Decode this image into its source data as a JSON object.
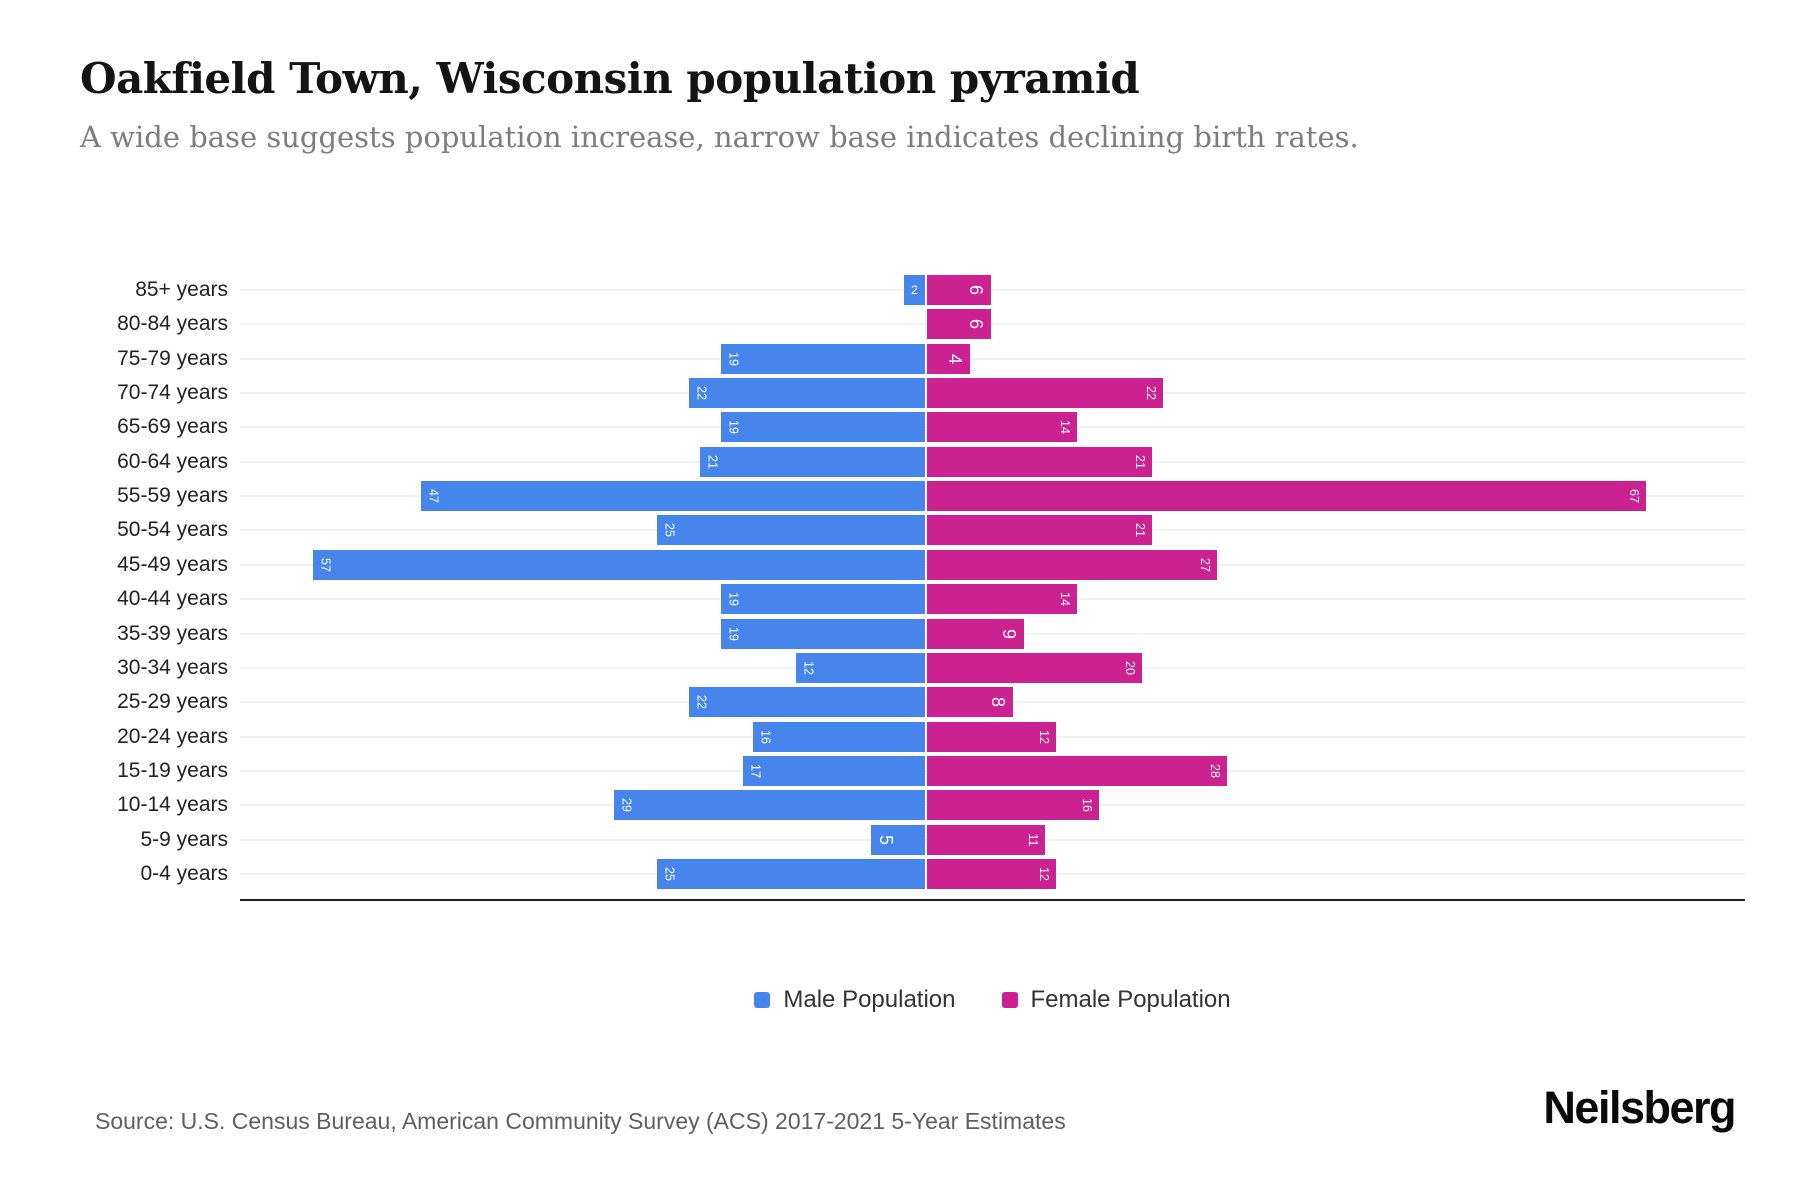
{
  "header": {
    "title": "Oakfield Town, Wisconsin population pyramid",
    "subtitle": "A wide base suggests population increase, narrow base indicates declining birth rates."
  },
  "chart_data": {
    "type": "bar",
    "variant": "population-pyramid",
    "orientation": "horizontal",
    "categories": [
      "85+ years",
      "80-84 years",
      "75-79 years",
      "70-74 years",
      "65-69 years",
      "60-64 years",
      "55-59 years",
      "50-54 years",
      "45-49 years",
      "40-44 years",
      "35-39 years",
      "30-34 years",
      "25-29 years",
      "20-24 years",
      "15-19 years",
      "10-14 years",
      "5-9 years",
      "0-4 years"
    ],
    "series": [
      {
        "name": "Male Population",
        "side": "left",
        "color": "#4686EC",
        "values": [
          2,
          0,
          19,
          22,
          19,
          21,
          47,
          25,
          57,
          19,
          19,
          12,
          22,
          16,
          17,
          29,
          5,
          25
        ]
      },
      {
        "name": "Female Population",
        "side": "right",
        "color": "#CB2191",
        "values": [
          6,
          6,
          4,
          22,
          14,
          21,
          67,
          21,
          27,
          14,
          9,
          20,
          8,
          12,
          28,
          16,
          11,
          12
        ]
      }
    ],
    "value_axis": {
      "max": 70,
      "ticks_visible": false
    },
    "grid": "horizontal-per-category",
    "legend_position": "bottom-center",
    "data_labels": "inside-outer-end, rotated 90deg, white"
  },
  "footer": {
    "source": "Source: U.S. Census Bureau, American Community Survey (ACS) 2017-2021 5-Year Estimates",
    "brand": "Neilsberg"
  },
  "colors": {
    "male": "#4686EC",
    "female": "#CB2191",
    "gridline": "#F2F2F2",
    "axis_line": "#212121",
    "title_text": "#141414",
    "subtitle_text": "#7D7D7D",
    "axis_label_text": "#222222",
    "source_text": "#5F5F5F",
    "background": "#FFFFFF"
  }
}
